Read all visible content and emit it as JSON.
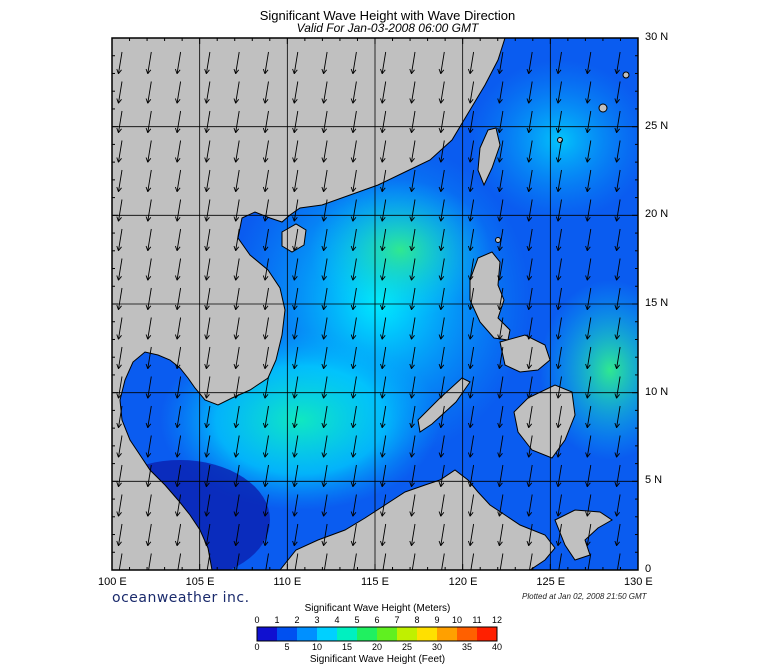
{
  "header": {
    "title": "Significant Wave Height with Wave Direction",
    "subtitle": "Valid For Jan-03-2008 06:00 GMT"
  },
  "map": {
    "region": "South China Sea",
    "lon_range": [
      100,
      130
    ],
    "lat_range": [
      0,
      30
    ],
    "lon_ticks": [
      "100 E",
      "105 E",
      "110 E",
      "115 E",
      "120 E",
      "125 E",
      "130 E"
    ],
    "lat_ticks": [
      "30 N",
      "25 N",
      "20 N",
      "15 N",
      "10 N",
      "5 N",
      "0"
    ],
    "grid_lines": true,
    "arrow_direction": "toward south-southwest",
    "colors": {
      "land": "#c0c0c0",
      "coast": "#000000",
      "grid": "#000000",
      "arrow": "#000000"
    }
  },
  "footer": {
    "brand": "oceanweather inc.",
    "plotted": "Plotted at Jan 02, 2008 21:50 GMT"
  },
  "legend": {
    "title_meters": "Significant Wave Height (Meters)",
    "title_feet": "Significant Wave Height (Feet)",
    "meters_ticks": [
      "0",
      "1",
      "2",
      "3",
      "4",
      "5",
      "6",
      "7",
      "8",
      "9",
      "10",
      "11",
      "12"
    ],
    "feet_ticks": [
      "0",
      "5",
      "10",
      "15",
      "20",
      "25",
      "30",
      "35",
      "40"
    ],
    "scale_colors": [
      "#1010d0",
      "#0050f0",
      "#0090ff",
      "#00d0ff",
      "#00f0c0",
      "#20f060",
      "#60f020",
      "#c0f000",
      "#ffe000",
      "#ffa000",
      "#ff6000",
      "#ff2000"
    ]
  }
}
